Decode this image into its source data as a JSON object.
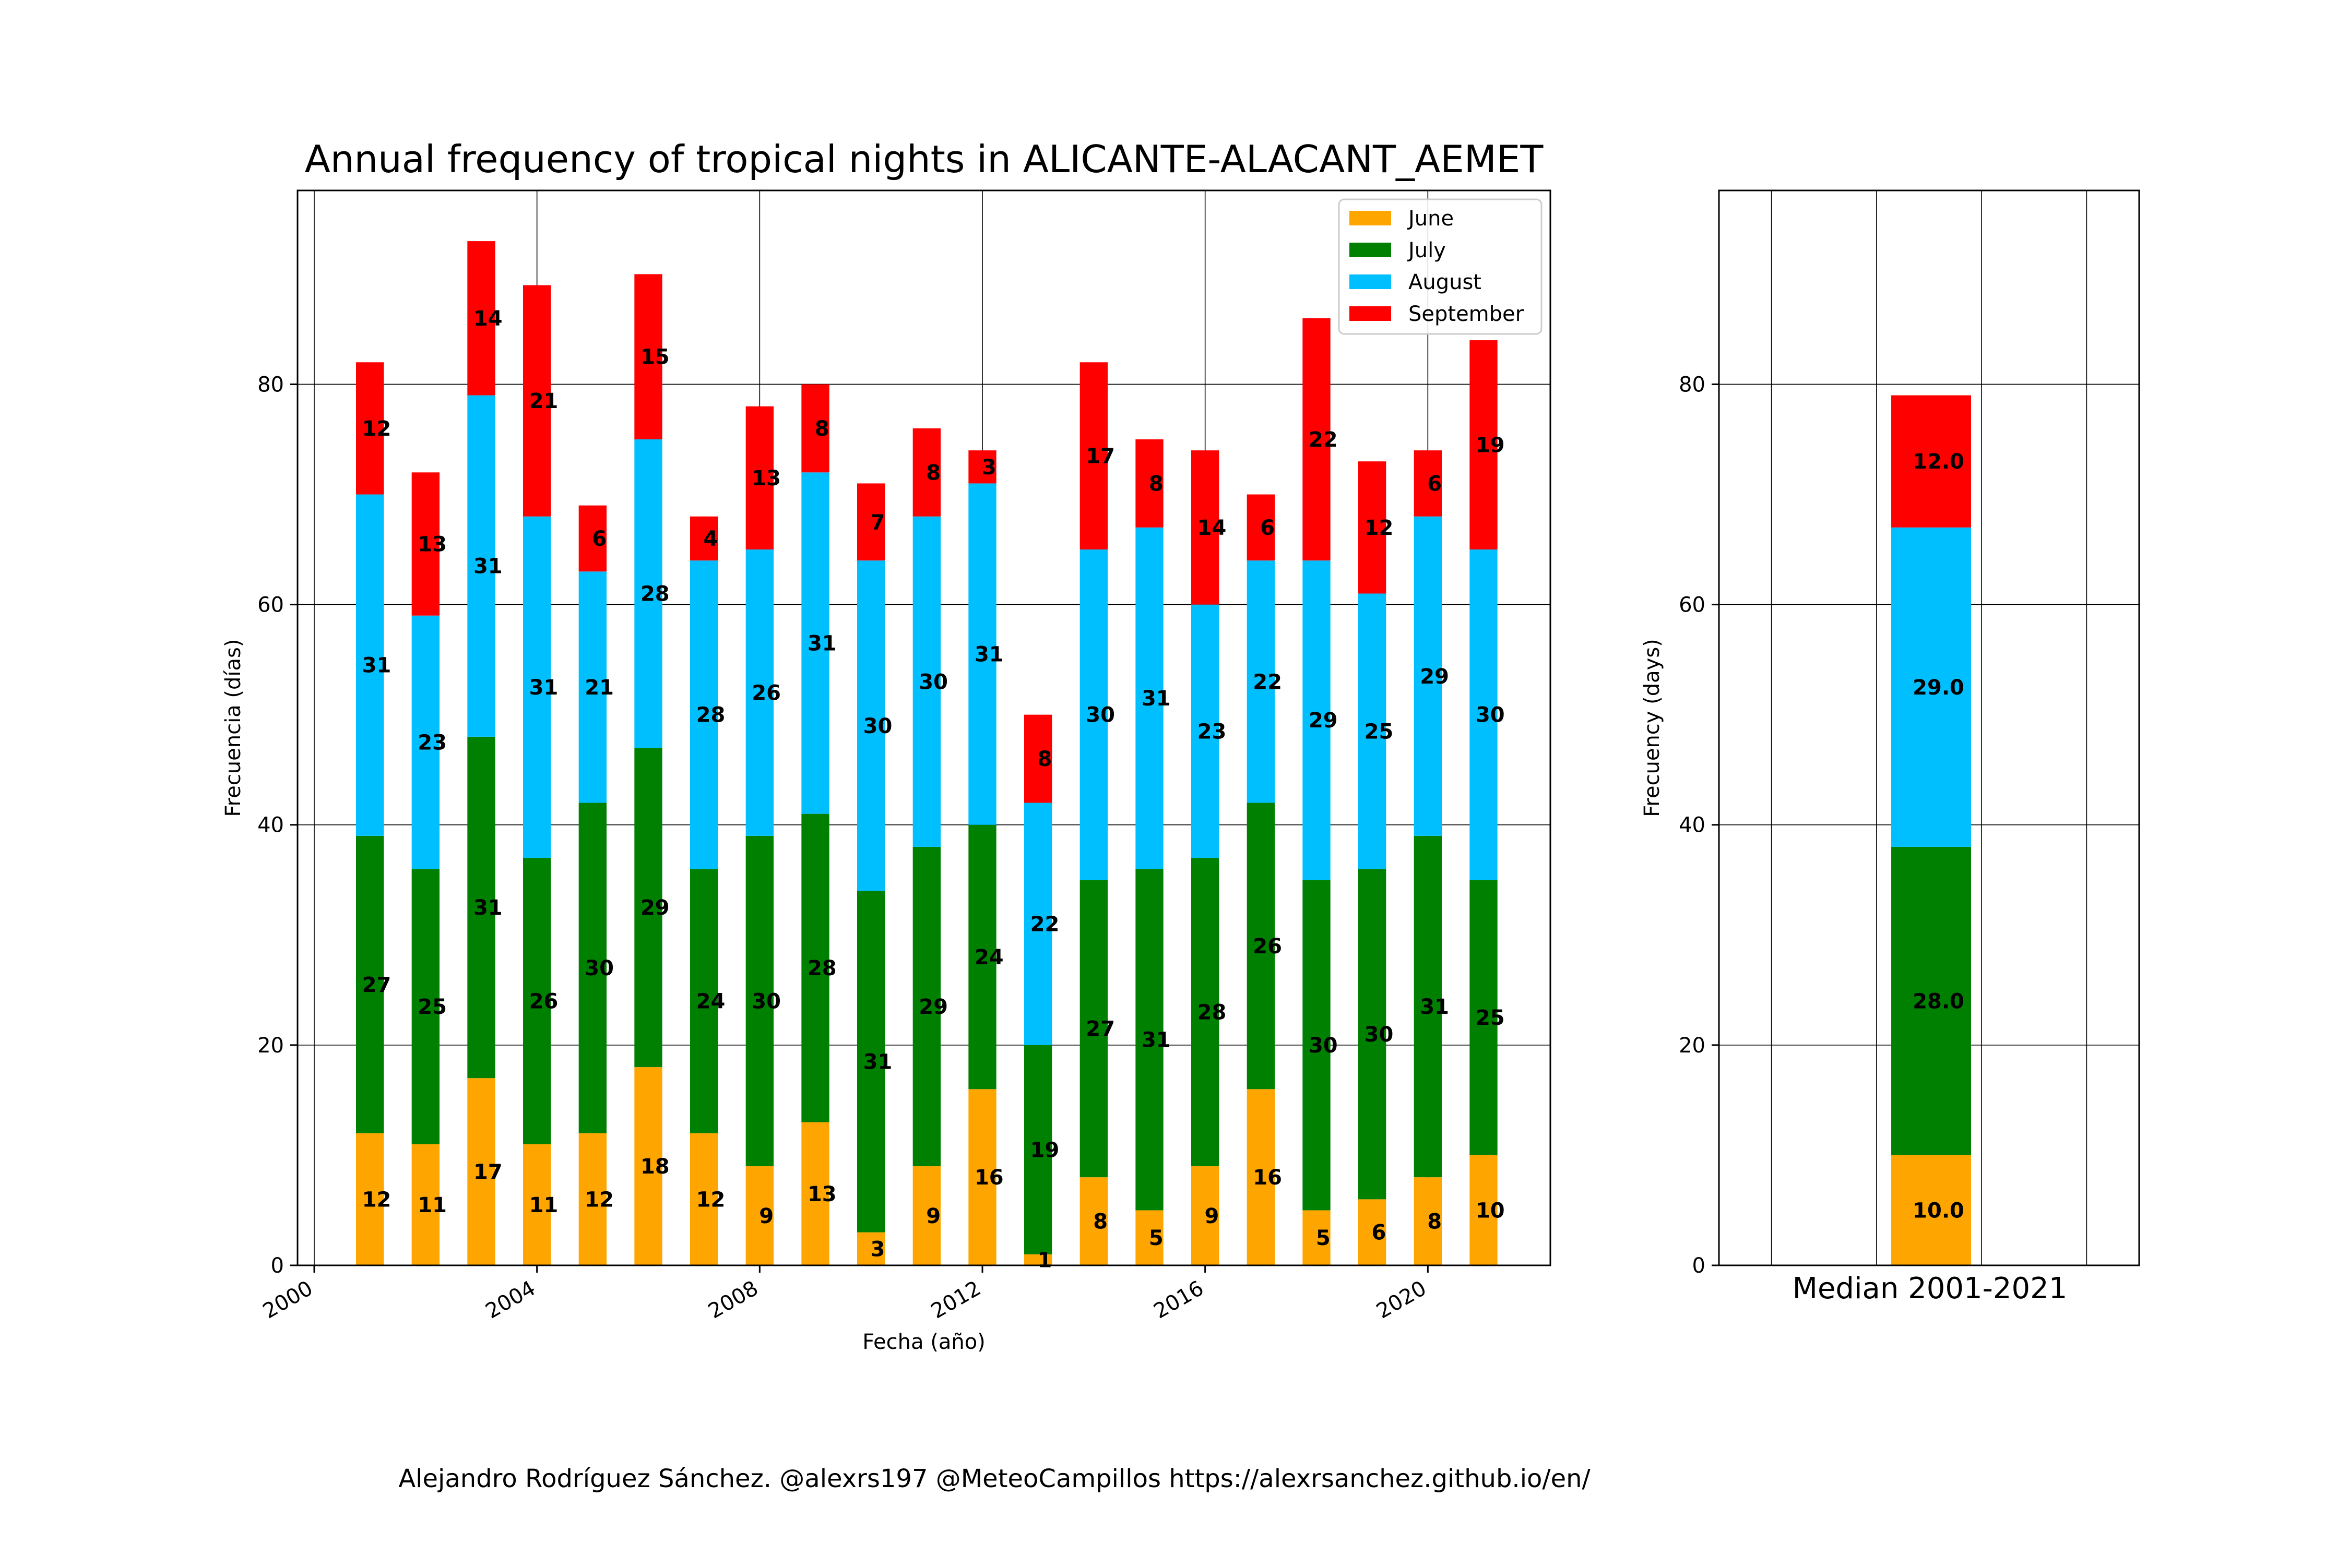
{
  "credit": "Alejandro Rodríguez Sánchez. @alexrs197 @MeteoCampillos   https://alexrsanchez.github.io/en/",
  "colors": {
    "June": "#FFA500",
    "July": "#008000",
    "August": "#00BFFF",
    "September": "#FF0000"
  },
  "chart_data": [
    {
      "type": "bar",
      "stacked": true,
      "title": "Annual frequency of tropical nights in ALICANTE-ALACANT_AEMET",
      "xlabel": "Fecha (año)",
      "ylabel": "Frecuencia (días)",
      "x": [
        2001,
        2002,
        2003,
        2004,
        2005,
        2006,
        2007,
        2008,
        2009,
        2010,
        2011,
        2012,
        2013,
        2014,
        2015,
        2016,
        2017,
        2018,
        2019,
        2020,
        2021
      ],
      "xticks": [
        "2000",
        "2004",
        "2008",
        "2012",
        "2016",
        "2020"
      ],
      "yticks": [
        "0",
        "20",
        "40",
        "60",
        "80"
      ],
      "xlim": [
        1999.7,
        2022.2
      ],
      "ylim": [
        0,
        97.6
      ],
      "grid": true,
      "legend_position": "top-right",
      "series": [
        {
          "name": "June",
          "values": [
            12,
            11,
            17,
            11,
            12,
            18,
            12,
            9,
            13,
            3,
            9,
            16,
            1,
            8,
            5,
            9,
            16,
            5,
            6,
            8,
            10
          ]
        },
        {
          "name": "July",
          "values": [
            27,
            25,
            31,
            26,
            30,
            29,
            24,
            30,
            28,
            31,
            29,
            24,
            19,
            27,
            31,
            28,
            26,
            30,
            30,
            31,
            25
          ]
        },
        {
          "name": "August",
          "values": [
            31,
            23,
            31,
            31,
            21,
            28,
            28,
            26,
            31,
            30,
            30,
            31,
            22,
            30,
            31,
            23,
            22,
            29,
            25,
            29,
            30
          ]
        },
        {
          "name": "September",
          "values": [
            12,
            13,
            14,
            21,
            6,
            15,
            4,
            13,
            8,
            7,
            8,
            3,
            8,
            17,
            8,
            14,
            6,
            22,
            12,
            6,
            19
          ]
        }
      ]
    },
    {
      "type": "bar",
      "stacked": true,
      "title": "",
      "xlabel": "Median 2001-2021",
      "ylabel": "Frecuency (days)",
      "yticks": [
        "0",
        "20",
        "40",
        "60",
        "80"
      ],
      "ylim": [
        0,
        97.6
      ],
      "grid": true,
      "series": [
        {
          "name": "June",
          "value": 10.0,
          "label": "10.0"
        },
        {
          "name": "July",
          "value": 28.0,
          "label": "28.0"
        },
        {
          "name": "August",
          "value": 29.0,
          "label": "29.0"
        },
        {
          "name": "September",
          "value": 12.0,
          "label": "12.0"
        }
      ]
    }
  ]
}
